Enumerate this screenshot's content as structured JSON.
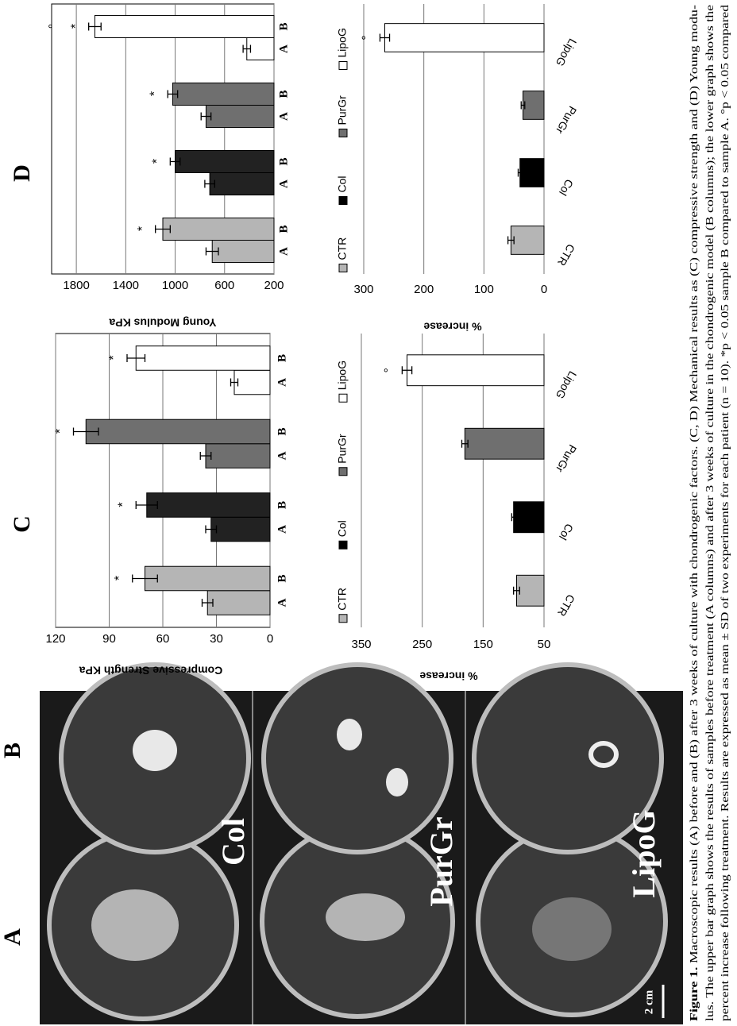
{
  "panels": [
    "A",
    "B",
    "C",
    "D"
  ],
  "photo_labels": [
    "Col",
    "PurGr",
    "LipoG"
  ],
  "scale_bar": "2 cm",
  "caption": {
    "label": "Figure 1.",
    "lines": [
      "Macroscopic results (A) before and (B) after 3 weeks of culture with chondrogenic factors. (C, D) Mechanical results as (C) compressive strength and (D) Young modu-",
      "lus. The upper bar graph shows the results of samples before treatment (A columns) and after 3 weeks of culture in the chondrogenic model (B columns); the lower graph shows the",
      "percent increase following treatment. Results are expressed as mean ± SD of two experiments for each patient (n = 10). *p < 0.05 sample B compared to sample A. °p < 0.05 compared"
    ]
  },
  "chart_data": [
    {
      "type": "bar",
      "y_label": "Compressive Strength KPa",
      "categories": [
        "CTR",
        "Col",
        "PurGr",
        "LipoG"
      ],
      "category_colors": [
        "#b5b5b5",
        "#222222",
        "#6f6f6f",
        "#ffffff"
      ],
      "series": [
        {
          "name": "A",
          "values": [
            35,
            33,
            36,
            20
          ],
          "errors": [
            3,
            3,
            3,
            2
          ]
        },
        {
          "name": "B",
          "values": [
            70,
            69,
            103,
            75
          ],
          "errors": [
            7,
            6,
            7,
            5
          ],
          "annotations": [
            {
              "index": 0,
              "text": "*"
            },
            {
              "index": 1,
              "text": "*"
            },
            {
              "index": 2,
              "text": "*"
            },
            {
              "index": 3,
              "text": "*"
            }
          ]
        }
      ],
      "ylim": [
        0,
        120
      ],
      "yticks": [
        0,
        30,
        60,
        90,
        120
      ],
      "grid": true
    },
    {
      "type": "bar",
      "y_label": "Young Modulus KPa",
      "categories": [
        "CTR",
        "Col",
        "PurGr",
        "LipoG"
      ],
      "category_colors": [
        "#b5b5b5",
        "#222222",
        "#6f6f6f",
        "#ffffff"
      ],
      "series": [
        {
          "name": "A",
          "values": [
            700,
            720,
            750,
            420
          ],
          "errors": [
            50,
            40,
            40,
            30
          ]
        },
        {
          "name": "B",
          "values": [
            1100,
            1000,
            1020,
            1650
          ],
          "errors": [
            60,
            40,
            40,
            50
          ],
          "annotations": [
            {
              "index": 0,
              "text": "*"
            },
            {
              "index": 1,
              "text": "*"
            },
            {
              "index": 2,
              "text": "*"
            },
            {
              "index": 3,
              "text": "*"
            },
            {
              "index": 3,
              "text": "°"
            }
          ]
        }
      ],
      "ylim": [
        200,
        2000
      ],
      "yticks": [
        200,
        600,
        1000,
        1400,
        1800
      ],
      "grid": true
    },
    {
      "type": "bar",
      "y_label": "% increase",
      "categories": [
        "CTR",
        "Col",
        "PurGr",
        "LipoG"
      ],
      "category_colors": [
        "#b5b5b5",
        "#000000",
        "#6f6f6f",
        "#ffffff"
      ],
      "values": [
        95,
        100,
        180,
        275
      ],
      "errors": [
        5,
        3,
        5,
        8
      ],
      "annotations": [
        {
          "index": 3,
          "text": "°"
        }
      ],
      "ylim": [
        50,
        350
      ],
      "yticks": [
        50,
        150,
        250,
        350
      ],
      "grid": true,
      "legend": true
    },
    {
      "type": "bar",
      "y_label": "% increase",
      "categories": [
        "CTR",
        "Col",
        "PurGr",
        "LipoG"
      ],
      "category_colors": [
        "#b5b5b5",
        "#000000",
        "#6f6f6f",
        "#ffffff"
      ],
      "values": [
        55,
        40,
        35,
        265
      ],
      "errors": [
        5,
        3,
        3,
        8
      ],
      "annotations": [
        {
          "index": 3,
          "text": "°"
        }
      ],
      "ylim": [
        0,
        300
      ],
      "yticks": [
        0,
        100,
        200,
        300
      ],
      "grid": true,
      "legend": true
    }
  ]
}
